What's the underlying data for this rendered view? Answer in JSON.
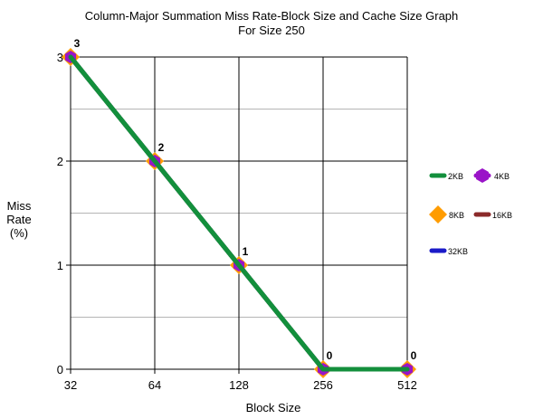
{
  "chart_data": {
    "type": "line",
    "title": "Column-Major Summation Miss Rate-Block Size and Cache Size Graph",
    "subtitle": "For Size 250",
    "xlabel": "Block Size",
    "ylabel": [
      "Miss",
      "Rate",
      "(%)"
    ],
    "categories": [
      "32",
      "64",
      "128",
      "256",
      "512"
    ],
    "ylim": [
      0,
      3
    ],
    "yticks": [
      "0",
      "1",
      "2",
      "3"
    ],
    "grid": true,
    "legend_position": "right",
    "series": [
      {
        "name": "2KB",
        "values": [
          3,
          2,
          1,
          0,
          0
        ],
        "color": "#138f3c",
        "marker": "line"
      },
      {
        "name": "4KB",
        "values": [
          3,
          2,
          1,
          0,
          0
        ],
        "color": "#9a14c8",
        "marker": "hexagon"
      },
      {
        "name": "8KB",
        "values": [
          3,
          2,
          1,
          0,
          0
        ],
        "color": "#ff9c00",
        "marker": "diamond"
      },
      {
        "name": "16KB",
        "values": [
          3,
          2,
          1,
          0,
          0
        ],
        "color": "#8b2a2a",
        "marker": "line"
      },
      {
        "name": "32KB",
        "values": [
          3,
          2,
          1,
          0,
          0
        ],
        "color": "#1a1ac8",
        "marker": "line"
      }
    ],
    "data_labels": [
      "3",
      "2",
      "1",
      "0",
      "0"
    ]
  }
}
